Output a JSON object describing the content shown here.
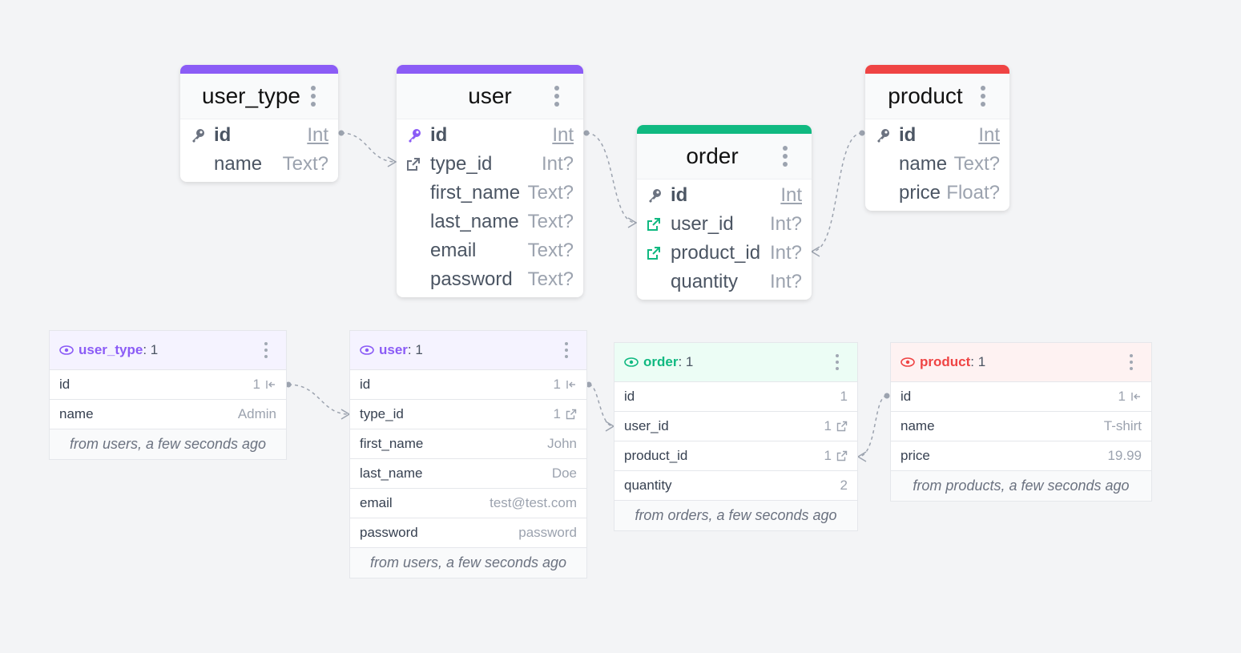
{
  "colors": {
    "purple": "#8b5cf6",
    "green": "#10b981",
    "red": "#ef4444",
    "purple_bg": "#f5f3ff",
    "green_bg": "#ecfdf5",
    "red_bg": "#fef2f2"
  },
  "schema": {
    "user_type": {
      "title": "user_type",
      "fields": [
        {
          "name": "id",
          "type": "Int",
          "icon": "key-icon"
        },
        {
          "name": "name",
          "type": "Text?",
          "icon": ""
        }
      ]
    },
    "user": {
      "title": "user",
      "fields": [
        {
          "name": "id",
          "type": "Int",
          "icon": "key-icon"
        },
        {
          "name": "type_id",
          "type": "Int?",
          "icon": "external-link-icon"
        },
        {
          "name": "first_name",
          "type": "Text?",
          "icon": ""
        },
        {
          "name": "last_name",
          "type": "Text?",
          "icon": ""
        },
        {
          "name": "email",
          "type": "Text?",
          "icon": ""
        },
        {
          "name": "password",
          "type": "Text?",
          "icon": ""
        }
      ]
    },
    "order": {
      "title": "order",
      "fields": [
        {
          "name": "id",
          "type": "Int",
          "icon": "key-icon"
        },
        {
          "name": "user_id",
          "type": "Int?",
          "icon": "external-link-icon"
        },
        {
          "name": "product_id",
          "type": "Int?",
          "icon": "external-link-icon"
        },
        {
          "name": "quantity",
          "type": "Int?",
          "icon": ""
        }
      ]
    },
    "product": {
      "title": "product",
      "fields": [
        {
          "name": "id",
          "type": "Int",
          "icon": "key-icon"
        },
        {
          "name": "name",
          "type": "Text?",
          "icon": ""
        },
        {
          "name": "price",
          "type": "Float?",
          "icon": ""
        }
      ]
    }
  },
  "cards": {
    "user_type": {
      "name": "user_type",
      "count": ": 1",
      "rows": [
        {
          "key": "id",
          "value": "1"
        },
        {
          "key": "name",
          "value": "Admin"
        }
      ],
      "footer": "from users, a few seconds ago"
    },
    "user": {
      "name": "user",
      "count": ": 1",
      "rows": [
        {
          "key": "id",
          "value": "1"
        },
        {
          "key": "type_id",
          "value": "1"
        },
        {
          "key": "first_name",
          "value": "John"
        },
        {
          "key": "last_name",
          "value": "Doe"
        },
        {
          "key": "email",
          "value": "test@test.com"
        },
        {
          "key": "password",
          "value": "password"
        }
      ],
      "footer": "from users, a few seconds ago"
    },
    "order": {
      "name": "order",
      "count": ": 1",
      "rows": [
        {
          "key": "id",
          "value": "1"
        },
        {
          "key": "user_id",
          "value": "1"
        },
        {
          "key": "product_id",
          "value": "1"
        },
        {
          "key": "quantity",
          "value": "2"
        }
      ],
      "footer": "from orders, a few seconds ago"
    },
    "product": {
      "name": "product",
      "count": ": 1",
      "rows": [
        {
          "key": "id",
          "value": "1"
        },
        {
          "key": "name",
          "value": "T-shirt"
        },
        {
          "key": "price",
          "value": "19.99"
        }
      ],
      "footer": "from products, a few seconds ago"
    }
  }
}
